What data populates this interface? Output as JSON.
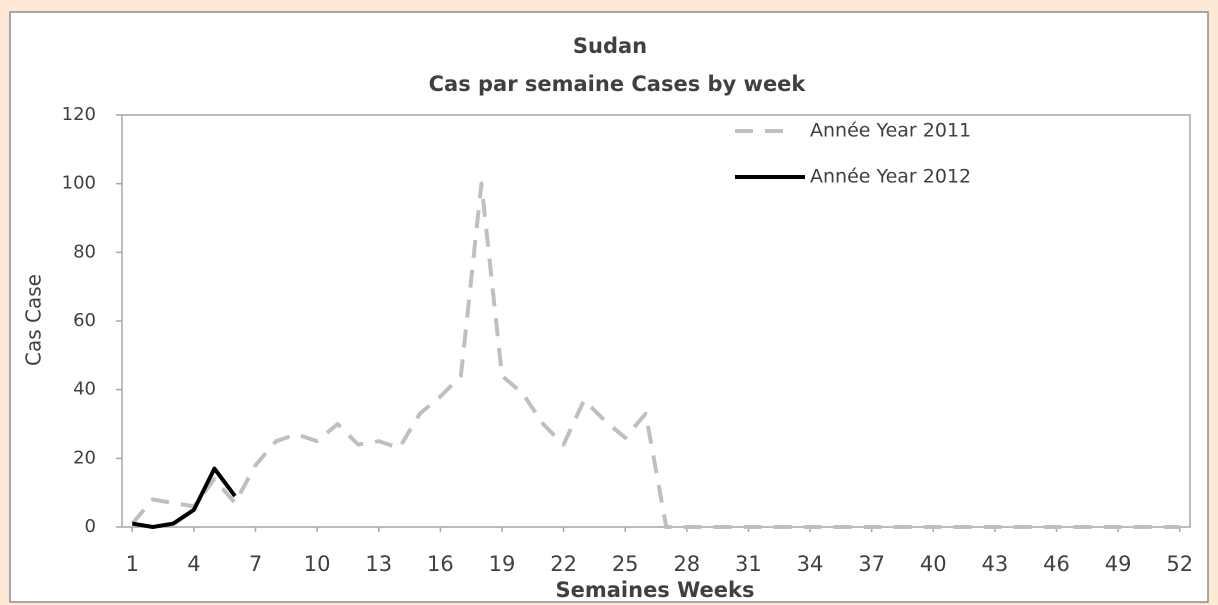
{
  "chart_data": {
    "type": "line",
    "title": "Sudan",
    "subtitle": "Cas par semaine Cases by week",
    "x_label": "Semaines Weeks",
    "y_label": "Cas Case",
    "x": [
      1,
      2,
      3,
      4,
      5,
      6,
      7,
      8,
      9,
      10,
      11,
      12,
      13,
      14,
      15,
      16,
      17,
      18,
      19,
      20,
      21,
      22,
      23,
      24,
      25,
      26,
      27,
      28,
      29,
      30,
      31,
      32,
      33,
      34,
      35,
      36,
      37,
      38,
      39,
      40,
      41,
      42,
      43,
      44,
      45,
      46,
      47,
      48,
      49,
      50,
      51,
      52
    ],
    "series": [
      {
        "name": "Année Year 2011",
        "color": "#bfbfbf",
        "dashed": true,
        "values": [
          1,
          8,
          7,
          6,
          14,
          7,
          18,
          25,
          27,
          25,
          30,
          24,
          25,
          23,
          33,
          38,
          44,
          100,
          44,
          39,
          30,
          24,
          37,
          31,
          26,
          33,
          0,
          0,
          0,
          0,
          0,
          0,
          0,
          0,
          0,
          0,
          0,
          0,
          0,
          0,
          0,
          0,
          0,
          0,
          0,
          0,
          0,
          0,
          0,
          0,
          0,
          0
        ]
      },
      {
        "name": "Année Year 2012",
        "color": "#000000",
        "dashed": false,
        "values": [
          1,
          0,
          1,
          5,
          17,
          9,
          null,
          null,
          null,
          null,
          null,
          null,
          null,
          null,
          null,
          null,
          null,
          null,
          null,
          null,
          null,
          null,
          null,
          null,
          null,
          null,
          null,
          null,
          null,
          null,
          null,
          null,
          null,
          null,
          null,
          null,
          null,
          null,
          null,
          null,
          null,
          null,
          null,
          null,
          null,
          null,
          null,
          null,
          null,
          null,
          null,
          null
        ]
      }
    ],
    "xlim": [
      0.5,
      52.5
    ],
    "xticks": [
      1,
      4,
      7,
      10,
      13,
      16,
      19,
      22,
      25,
      28,
      31,
      34,
      37,
      40,
      43,
      46,
      49,
      52
    ],
    "ylim": [
      0,
      120
    ],
    "yticks": [
      0,
      20,
      40,
      60,
      80,
      100,
      120
    ],
    "grid": false,
    "legend": "top-right"
  }
}
